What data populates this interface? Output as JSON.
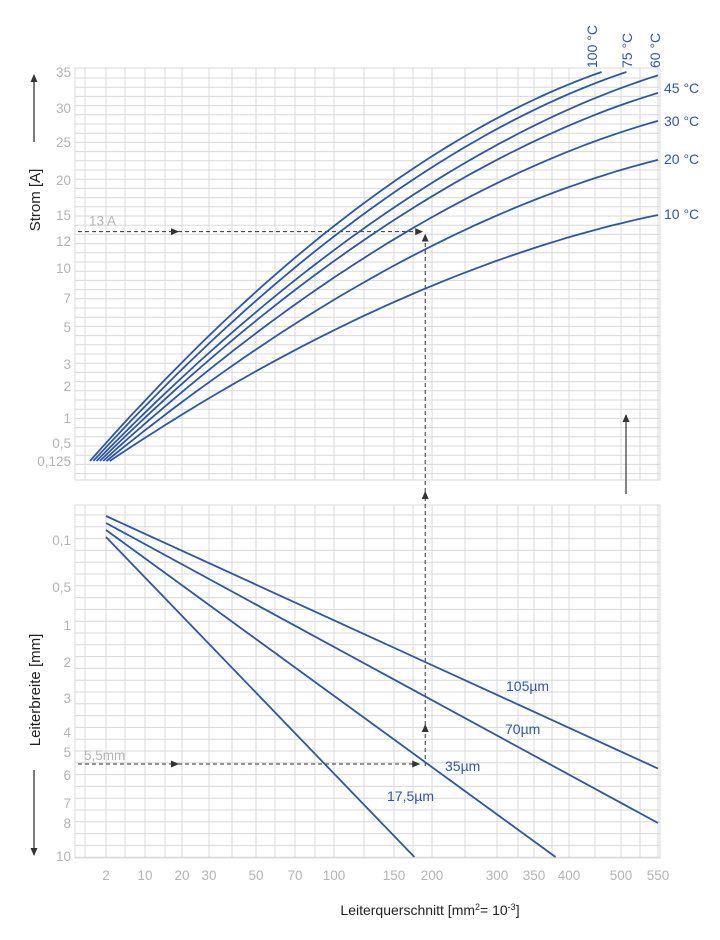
{
  "colors": {
    "curve": "#2e57a2",
    "grid": "#d8d8d8",
    "tick_text": "#b4b4b4",
    "guide": "#333333",
    "axis_title": "#222222"
  },
  "chart_data": [
    {
      "type": "line",
      "panel": "top",
      "ylabel": "Strom [A]",
      "y_ticks": [
        "35",
        "30",
        "25",
        "20",
        "15",
        "12",
        "10",
        "7",
        "5",
        "3",
        "2",
        "1",
        "0,5",
        "0,125"
      ],
      "y_values": [
        35,
        30,
        25,
        20,
        15,
        12,
        10,
        7,
        5,
        3,
        2,
        1,
        0.5,
        0.125
      ],
      "x_ticks": [
        "2",
        "10",
        "20",
        "30",
        "50",
        "70",
        "100",
        "150",
        "200",
        "300",
        "350",
        "400",
        "500",
        "550"
      ],
      "x_values": [
        2,
        10,
        20,
        30,
        50,
        70,
        100,
        150,
        200,
        300,
        350,
        400,
        500,
        550
      ],
      "xlabel_main": "Leiterquerschnitt [mm",
      "xlabel_sup1": "2",
      "xlabel_mid": "= 10",
      "xlabel_sup2": "-3",
      "xlabel_end": "]",
      "series": [
        {
          "name": "100 °C",
          "x_start": 1.0,
          "x_end": 460,
          "y_end": 35
        },
        {
          "name": "75 °C",
          "x_start": 1.5,
          "x_end": 507,
          "y_end": 35
        },
        {
          "name": "60 °C",
          "x_start": 2.0,
          "x_end": 550,
          "y_end": 34.5
        },
        {
          "name": "45 °C",
          "x_start": 2.5,
          "x_end": 550,
          "y_end": 32
        },
        {
          "name": "30 °C",
          "x_start": 3.0,
          "x_end": 550,
          "y_end": 28
        },
        {
          "name": "20 °C",
          "x_start": 3.5,
          "x_end": 550,
          "y_end": 22.5
        },
        {
          "name": "10 °C",
          "x_start": 4.0,
          "x_end": 550,
          "y_end": 15
        }
      ],
      "annotation": {
        "label": "13 A",
        "y": 13,
        "x": 190
      }
    },
    {
      "type": "line",
      "panel": "bottom",
      "ylabel": "Leiterbreite [mm]",
      "y_ticks": [
        "0,1",
        "0,5",
        "1",
        "2",
        "3",
        "4",
        "5",
        "6",
        "7",
        "8",
        "10"
      ],
      "y_values": [
        0.1,
        0.5,
        1,
        2,
        3,
        4,
        5,
        6,
        7,
        8,
        10
      ],
      "series": [
        {
          "name": "105µm",
          "x_start": 2,
          "y_start": 0.03,
          "x_end": 550,
          "y_end": 5.7
        },
        {
          "name": "70µm",
          "x_start": 2,
          "y_start": 0.05,
          "x_end": 550,
          "y_end": 8.0
        },
        {
          "name": "35µm",
          "x_start": 2,
          "y_start": 0.07,
          "x_end": 380,
          "y_end": 10
        },
        {
          "name": "17,5µm",
          "x_start": 2,
          "y_start": 0.1,
          "x_end": 175,
          "y_end": 10
        }
      ],
      "annotation": {
        "label": "5,5mm",
        "y": 5.5,
        "x": 190
      }
    }
  ]
}
